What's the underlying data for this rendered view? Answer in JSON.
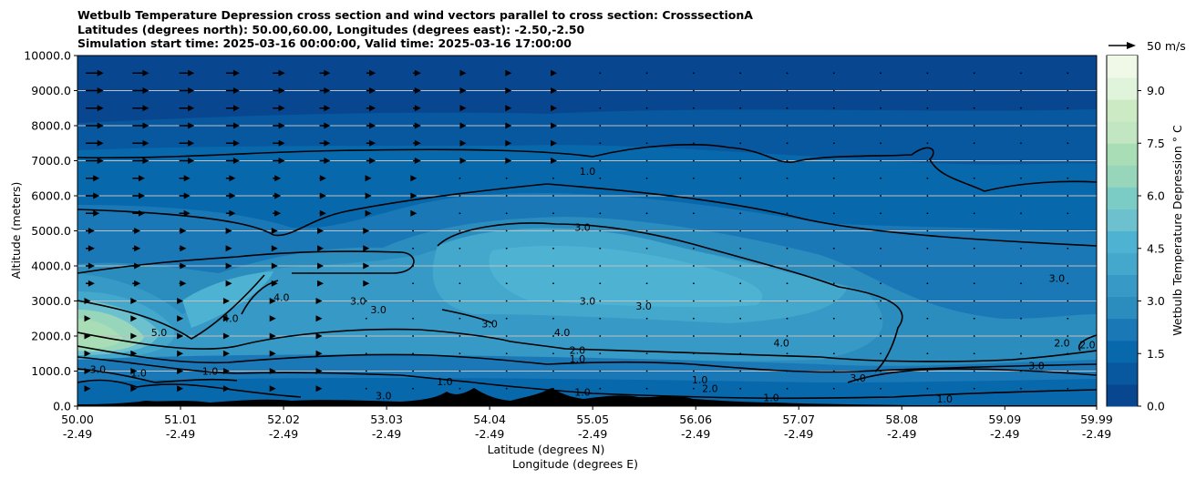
{
  "title": {
    "line1": "Wetbulb Temperature Depression cross section and wind vectors parallel to cross section: CrosssectionA",
    "line2": "Latitudes (degrees north): 50.00,60.00, Longitudes (degrees east): -2.50,-2.50",
    "line3": "Simulation start time: 2025-03-16 00:00:00, Valid time: 2025-03-16 17:00:00"
  },
  "colors": {
    "levels": [
      "#08468f",
      "#0858a0",
      "#0868ac",
      "#1a78b7",
      "#2b8cbe",
      "#3799c5",
      "#43a8cc",
      "#4eb3d3",
      "#6dc0cd",
      "#7bccc4",
      "#97d6bb",
      "#a8ddb5",
      "#c2e6c1",
      "#ccebc5",
      "#e0f3db",
      "#f0f9e8"
    ],
    "terrain": "#000000",
    "grid": "#bfbfbf"
  },
  "chart_data": {
    "type": "contour",
    "xlabel": "Latitude (degrees N)",
    "xlabel2": "Longitude (degrees E)",
    "ylabel": "Altitude (meters)",
    "x_ticks": [
      {
        "lat": "50.00",
        "lon": "-2.49"
      },
      {
        "lat": "51.01",
        "lon": "-2.49"
      },
      {
        "lat": "52.02",
        "lon": "-2.49"
      },
      {
        "lat": "53.03",
        "lon": "-2.49"
      },
      {
        "lat": "54.04",
        "lon": "-2.49"
      },
      {
        "lat": "55.05",
        "lon": "-2.49"
      },
      {
        "lat": "56.06",
        "lon": "-2.49"
      },
      {
        "lat": "57.07",
        "lon": "-2.49"
      },
      {
        "lat": "58.08",
        "lon": "-2.49"
      },
      {
        "lat": "59.09",
        "lon": "-2.49"
      },
      {
        "lat": "59.99",
        "lon": "-2.49"
      }
    ],
    "xlim": [
      50.0,
      59.99
    ],
    "ylim": [
      0,
      10000
    ],
    "y_ticks": [
      "0.0",
      "1000.0",
      "2000.0",
      "3000.0",
      "4000.0",
      "5000.0",
      "6000.0",
      "7000.0",
      "8000.0",
      "9000.0",
      "10000.0"
    ],
    "grid": "horizontal",
    "colorbar": {
      "label": "Wetbulb Temperature Depression ° C",
      "range": [
        0,
        10
      ],
      "ticks": [
        "0.0",
        "1.5",
        "3.0",
        "4.5",
        "6.0",
        "7.5",
        "9.0"
      ]
    },
    "contour_levels": [
      1.0,
      2.0,
      3.0,
      4.0,
      5.0
    ],
    "contour_labels": [
      {
        "text": "1.0",
        "lat": 55.0,
        "alt": 6650
      },
      {
        "text": "3.0",
        "lat": 54.95,
        "alt": 5050
      },
      {
        "text": "4.0",
        "lat": 52.0,
        "alt": 3050
      },
      {
        "text": "4.0",
        "lat": 51.5,
        "alt": 2450
      },
      {
        "text": "5.0",
        "lat": 50.8,
        "alt": 2050
      },
      {
        "text": "3.0",
        "lat": 52.75,
        "alt": 2950
      },
      {
        "text": "3.0",
        "lat": 52.95,
        "alt": 2700
      },
      {
        "text": "3.0",
        "lat": 55.0,
        "alt": 2950
      },
      {
        "text": "3.0",
        "lat": 55.55,
        "alt": 2800
      },
      {
        "text": "3.0",
        "lat": 54.04,
        "alt": 2300
      },
      {
        "text": "4.0",
        "lat": 54.75,
        "alt": 2050
      },
      {
        "text": "2.0",
        "lat": 54.9,
        "alt": 1550
      },
      {
        "text": "1.0",
        "lat": 54.9,
        "alt": 1300
      },
      {
        "text": "1.0",
        "lat": 53.6,
        "alt": 650
      },
      {
        "text": "1.0",
        "lat": 54.95,
        "alt": 350
      },
      {
        "text": "1.0",
        "lat": 51.3,
        "alt": 950
      },
      {
        "text": "4.0",
        "lat": 56.9,
        "alt": 1750
      },
      {
        "text": "3.0",
        "lat": 57.65,
        "alt": 750
      },
      {
        "text": "3.0",
        "lat": 59.6,
        "alt": 3600
      },
      {
        "text": "2.0",
        "lat": 59.65,
        "alt": 1750
      },
      {
        "text": "2.0",
        "lat": 59.9,
        "alt": 1700
      },
      {
        "text": "3.0",
        "lat": 59.4,
        "alt": 1100
      },
      {
        "text": "1.0",
        "lat": 58.5,
        "alt": 160
      },
      {
        "text": "1.0",
        "lat": 56.1,
        "alt": 700
      },
      {
        "text": "2.0",
        "lat": 56.2,
        "alt": 450
      },
      {
        "text": "3.0",
        "lat": 50.2,
        "alt": 1000
      },
      {
        "text": "1.0",
        "lat": 50.6,
        "alt": 900
      },
      {
        "text": "3.0",
        "lat": 53.0,
        "alt": 250
      },
      {
        "text": "1.0",
        "lat": 56.8,
        "alt": 200
      }
    ],
    "wind_key": {
      "label": "50 m/s"
    }
  }
}
